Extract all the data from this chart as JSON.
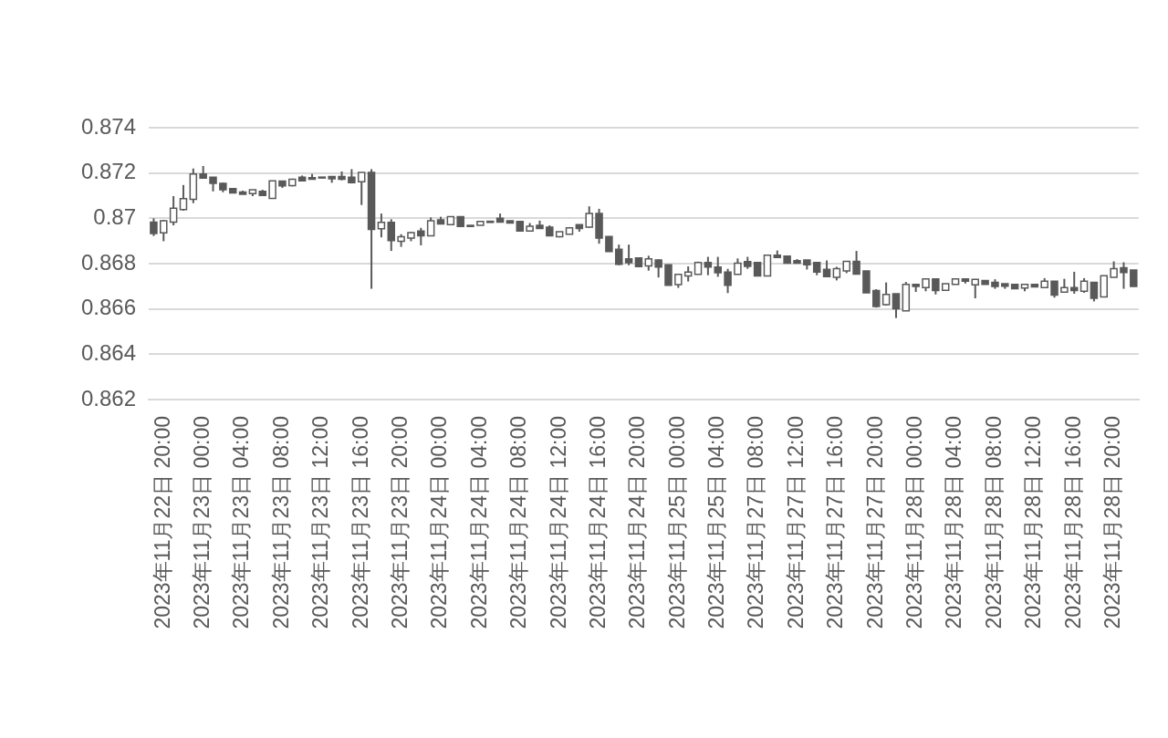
{
  "chart_data": {
    "type": "candlestick",
    "color": "#595959",
    "grid": "y",
    "ylim": [
      0.862,
      0.874
    ],
    "yticks": [
      0.862,
      0.864,
      0.866,
      0.868,
      0.87,
      0.872,
      0.874
    ],
    "categories": [
      null,
      "2023年11月22日 20:00",
      null,
      null,
      null,
      "2023年11月23日 00:00",
      null,
      null,
      null,
      "2023年11月23日 04:00",
      null,
      null,
      null,
      "2023年11月23日 08:00",
      null,
      null,
      null,
      "2023年11月23日 12:00",
      null,
      null,
      null,
      "2023年11月23日 16:00",
      null,
      null,
      null,
      "2023年11月23日 20:00",
      null,
      null,
      null,
      "2023年11月24日 00:00",
      null,
      null,
      null,
      "2023年11月24日 04:00",
      null,
      null,
      null,
      "2023年11月24日 08:00",
      null,
      null,
      null,
      "2023年11月24日 12:00",
      null,
      null,
      null,
      "2023年11月24日 16:00",
      null,
      null,
      null,
      "2023年11月24日 20:00",
      null,
      null,
      null,
      "2023年11月25日 00:00",
      null,
      null,
      null,
      "2023年11月25日 04:00",
      null,
      null,
      null,
      "2023年11月27日 08:00",
      null,
      null,
      null,
      "2023年11月27日 12:00",
      null,
      null,
      null,
      "2023年11月27日 16:00",
      null,
      null,
      null,
      "2023年11月27日 20:00",
      null,
      null,
      null,
      "2023年11月28日 00:00",
      null,
      null,
      null,
      "2023年11月28日 04:00",
      null,
      null,
      null,
      "2023年11月28日 08:00",
      null,
      null,
      null,
      "2023年11月28日 12:00",
      null,
      null,
      null,
      "2023年11月28日 16:00",
      null,
      null,
      null,
      "2023年11月28日 20:00",
      null,
      null
    ],
    "ohlc": [
      [
        0.86983,
        0.87,
        0.86922,
        0.86933
      ],
      [
        0.86936,
        0.86993,
        0.86899,
        0.86989
      ],
      [
        0.86983,
        0.87098,
        0.86969,
        0.87045
      ],
      [
        0.87039,
        0.87147,
        0.87034,
        0.87087
      ],
      [
        0.87084,
        0.8722,
        0.87067,
        0.87196
      ],
      [
        0.87196,
        0.87231,
        0.87175,
        0.87178
      ],
      [
        0.87182,
        0.87182,
        0.87119,
        0.87154
      ],
      [
        0.87154,
        0.87157,
        0.87115,
        0.87126
      ],
      [
        0.87131,
        0.87131,
        0.87112,
        0.87112
      ],
      [
        0.87116,
        0.87122,
        0.87106,
        0.87106
      ],
      [
        0.87109,
        0.87126,
        0.87098,
        0.87126
      ],
      [
        0.87119,
        0.87126,
        0.87098,
        0.87101
      ],
      [
        0.87088,
        0.87165,
        0.87088,
        0.87165
      ],
      [
        0.87164,
        0.87164,
        0.87134,
        0.87143
      ],
      [
        0.87144,
        0.87175,
        0.87141,
        0.87172
      ],
      [
        0.87182,
        0.87189,
        0.87165,
        0.87165
      ],
      [
        0.8718,
        0.87196,
        0.87172,
        0.87172
      ],
      [
        0.87182,
        0.87182,
        0.87178,
        0.87178
      ],
      [
        0.87185,
        0.87185,
        0.87157,
        0.87175
      ],
      [
        0.87185,
        0.87207,
        0.87168,
        0.87172
      ],
      [
        0.87182,
        0.87217,
        0.87154,
        0.87157
      ],
      [
        0.87161,
        0.87203,
        0.87059,
        0.87203
      ],
      [
        0.87203,
        0.87217,
        0.86689,
        0.86951
      ],
      [
        0.86954,
        0.87021,
        0.86916,
        0.86982
      ],
      [
        0.86982,
        0.86996,
        0.86856,
        0.86902
      ],
      [
        0.86899,
        0.8693,
        0.86874,
        0.86919
      ],
      [
        0.86913,
        0.8694,
        0.86899,
        0.86937
      ],
      [
        0.86944,
        0.86958,
        0.86881,
        0.86923
      ],
      [
        0.86923,
        0.87004,
        0.86923,
        0.86989
      ],
      [
        0.86993,
        0.87007,
        0.86975,
        0.86975
      ],
      [
        0.86972,
        0.87007,
        0.86969,
        0.87007
      ],
      [
        0.87007,
        0.87007,
        0.86964,
        0.86964
      ],
      [
        0.86969,
        0.86969,
        0.86964,
        0.86964
      ],
      [
        0.86969,
        0.86986,
        0.86969,
        0.86986
      ],
      [
        0.86987,
        0.86987,
        0.86982,
        0.86982
      ],
      [
        0.87,
        0.87021,
        0.86983,
        0.86983
      ],
      [
        0.86989,
        0.86989,
        0.86979,
        0.86979
      ],
      [
        0.86986,
        0.86986,
        0.86944,
        0.86944
      ],
      [
        0.86944,
        0.86979,
        0.86944,
        0.86965
      ],
      [
        0.86969,
        0.8699,
        0.86955,
        0.86955
      ],
      [
        0.86961,
        0.86969,
        0.86923,
        0.86923
      ],
      [
        0.86919,
        0.86941,
        0.86916,
        0.86941
      ],
      [
        0.8693,
        0.86958,
        0.8693,
        0.86958
      ],
      [
        0.86972,
        0.86972,
        0.86941,
        0.86955
      ],
      [
        0.86961,
        0.87053,
        0.86958,
        0.87021
      ],
      [
        0.87021,
        0.87042,
        0.86888,
        0.86913
      ],
      [
        0.8692,
        0.8692,
        0.86853,
        0.86853
      ],
      [
        0.86863,
        0.86884,
        0.86793,
        0.86797
      ],
      [
        0.86821,
        0.86884,
        0.86793,
        0.86804
      ],
      [
        0.86825,
        0.86825,
        0.86787,
        0.86787
      ],
      [
        0.8679,
        0.86835,
        0.86769,
        0.86821
      ],
      [
        0.86816,
        0.86819,
        0.86739,
        0.86785
      ],
      [
        0.86795,
        0.86795,
        0.86704,
        0.86704
      ],
      [
        0.86707,
        0.86753,
        0.86693,
        0.86753
      ],
      [
        0.86746,
        0.86788,
        0.86721,
        0.86763
      ],
      [
        0.86753,
        0.86809,
        0.86753,
        0.86805
      ],
      [
        0.86805,
        0.8683,
        0.86749,
        0.86785
      ],
      [
        0.86785,
        0.8683,
        0.86742,
        0.8676
      ],
      [
        0.86763,
        0.86777,
        0.8667,
        0.86704
      ],
      [
        0.86753,
        0.86823,
        0.86753,
        0.86802
      ],
      [
        0.86809,
        0.8683,
        0.86777,
        0.86788
      ],
      [
        0.86805,
        0.86805,
        0.86746,
        0.86746
      ],
      [
        0.86746,
        0.86837,
        0.86746,
        0.86837
      ],
      [
        0.86837,
        0.86858,
        0.86827,
        0.86827
      ],
      [
        0.86833,
        0.86833,
        0.86802,
        0.86802
      ],
      [
        0.86813,
        0.8682,
        0.86802,
        0.86802
      ],
      [
        0.86816,
        0.86816,
        0.86774,
        0.86795
      ],
      [
        0.86805,
        0.86805,
        0.86749,
        0.86763
      ],
      [
        0.86775,
        0.86814,
        0.86743,
        0.86743
      ],
      [
        0.8674,
        0.86786,
        0.86726,
        0.86778
      ],
      [
        0.86768,
        0.8681,
        0.86758,
        0.8681
      ],
      [
        0.8681,
        0.86856,
        0.86754,
        0.86754
      ],
      [
        0.86768,
        0.86768,
        0.86671,
        0.86671
      ],
      [
        0.86681,
        0.86687,
        0.86606,
        0.86611
      ],
      [
        0.86619,
        0.86717,
        0.86615,
        0.86664
      ],
      [
        0.86667,
        0.86667,
        0.8656,
        0.86601
      ],
      [
        0.86592,
        0.86719,
        0.86592,
        0.86708
      ],
      [
        0.86708,
        0.86708,
        0.86675,
        0.86699
      ],
      [
        0.86694,
        0.86733,
        0.86678,
        0.86733
      ],
      [
        0.86733,
        0.86733,
        0.86664,
        0.86681
      ],
      [
        0.86682,
        0.86711,
        0.86682,
        0.86711
      ],
      [
        0.86708,
        0.86733,
        0.86708,
        0.86733
      ],
      [
        0.86733,
        0.86733,
        0.86712,
        0.86722
      ],
      [
        0.86706,
        0.86731,
        0.86647,
        0.86731
      ],
      [
        0.86726,
        0.86726,
        0.86708,
        0.86708
      ],
      [
        0.86717,
        0.86731,
        0.86689,
        0.86699
      ],
      [
        0.86711,
        0.86711,
        0.86689,
        0.867
      ],
      [
        0.86708,
        0.86708,
        0.86689,
        0.86689
      ],
      [
        0.86692,
        0.86708,
        0.86678,
        0.86708
      ],
      [
        0.86708,
        0.86708,
        0.86697,
        0.86697
      ],
      [
        0.86694,
        0.86736,
        0.86694,
        0.86722
      ],
      [
        0.86722,
        0.86722,
        0.8665,
        0.86661
      ],
      [
        0.86674,
        0.86733,
        0.86674,
        0.86694
      ],
      [
        0.86694,
        0.86764,
        0.86667,
        0.86681
      ],
      [
        0.86678,
        0.86736,
        0.86671,
        0.86722
      ],
      [
        0.86717,
        0.86717,
        0.86633,
        0.86647
      ],
      [
        0.86653,
        0.86747,
        0.86653,
        0.86747
      ],
      [
        0.8674,
        0.8681,
        0.8674,
        0.86778
      ],
      [
        0.86782,
        0.86806,
        0.86689,
        0.86761
      ],
      [
        0.86772,
        0.86772,
        0.86699,
        0.86699
      ]
    ]
  }
}
